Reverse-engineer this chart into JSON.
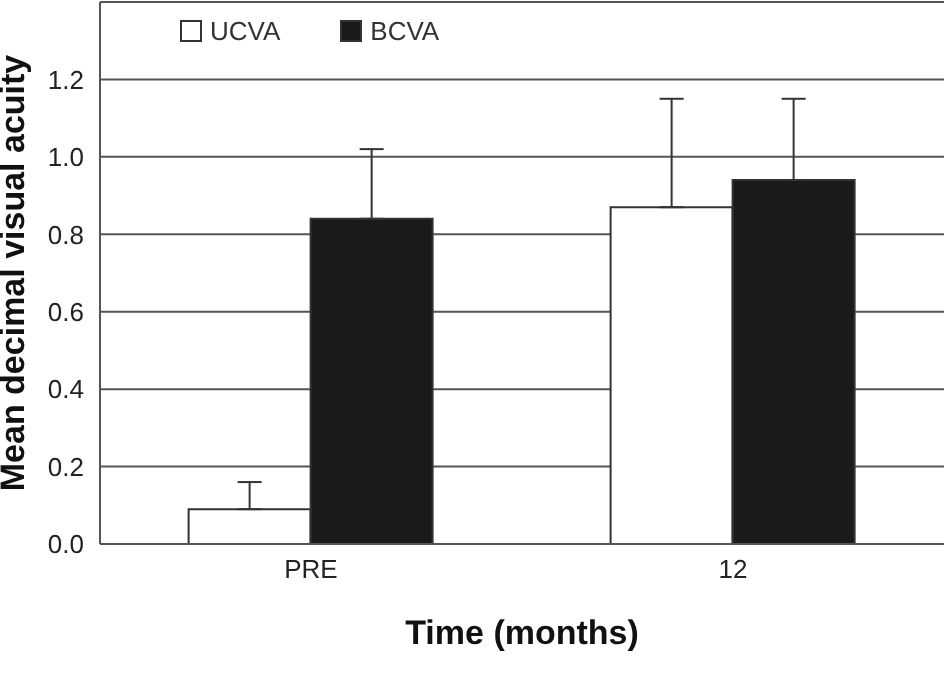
{
  "chart_data": {
    "type": "bar",
    "xlabel": "Time (months)",
    "ylabel": "Mean decimal visual acuity",
    "categories": [
      "PRE",
      "12"
    ],
    "series": [
      {
        "name": "UCVA",
        "color": "#ffffff",
        "values": [
          0.09,
          0.87
        ],
        "errors": [
          [
            0.09,
            0.16
          ],
          [
            0.87,
            1.15
          ]
        ]
      },
      {
        "name": "BCVA",
        "color": "#1a1a1a",
        "values": [
          0.84,
          0.94
        ],
        "errors": [
          [
            0.84,
            1.02
          ],
          [
            0.94,
            1.15
          ]
        ]
      }
    ],
    "ylim": [
      0,
      1.4
    ],
    "yticks": [
      {
        "value": 0,
        "label": "0.0"
      },
      {
        "value": 0.2,
        "label": "0.2"
      },
      {
        "value": 0.4,
        "label": "0.4"
      },
      {
        "value": 0.6,
        "label": "0.6"
      },
      {
        "value": 0.8,
        "label": "0.8"
      },
      {
        "value": 1,
        "label": "1.0"
      },
      {
        "value": 1.2,
        "label": "1.2"
      }
    ],
    "grid": "y",
    "legend": "top left"
  }
}
